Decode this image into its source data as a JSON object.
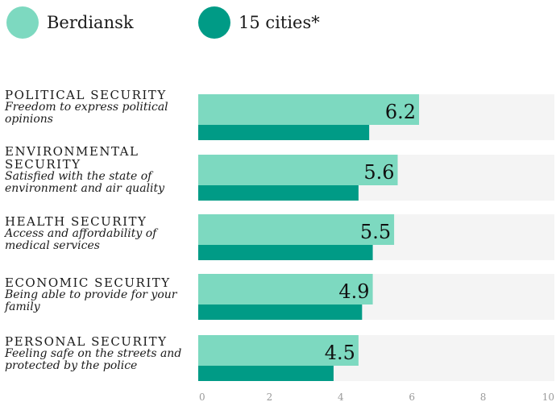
{
  "chart_data": {
    "type": "bar",
    "orientation": "horizontal",
    "title": "",
    "xlabel": "",
    "ylabel": "",
    "xlim": [
      0,
      10
    ],
    "xticks": [
      "0",
      "2",
      "4",
      "6",
      "8",
      "10"
    ],
    "grid": false,
    "legend_position": "top-left",
    "categories": [
      {
        "title": "POLITICAL SECURITY",
        "subtitle": "Freedom to express political opinions"
      },
      {
        "title": "ENVIRONMENTAL SECURITY",
        "subtitle": "Satisfied with the state of environment and air quality"
      },
      {
        "title": "HEALTH SECURITY",
        "subtitle": "Access and affordability of medical services"
      },
      {
        "title": "ECONOMIC SECURITY",
        "subtitle": "Being able to provide for your family"
      },
      {
        "title": "PERSONAL SECURITY",
        "subtitle": "Feeling safe on the streets and protected by the police"
      }
    ],
    "series": [
      {
        "name": "Berdiansk",
        "color": "#7dd9c0",
        "values": [
          6.2,
          5.6,
          5.5,
          4.9,
          4.5
        ],
        "data_labels": [
          "6.2",
          "5.6",
          "5.5",
          "4.9",
          "4.5"
        ]
      },
      {
        "name": "15 cities*",
        "color": "#009b86",
        "values": [
          4.8,
          4.5,
          4.9,
          4.6,
          3.8
        ]
      }
    ],
    "background_track_color": "#f4f4f4"
  }
}
